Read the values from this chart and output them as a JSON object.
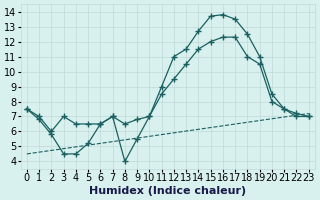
{
  "line1_x": [
    0,
    1,
    2,
    3,
    4,
    5,
    6,
    7,
    8,
    9,
    10,
    11,
    12,
    13,
    14,
    15,
    16,
    17,
    18,
    19,
    20,
    21,
    22,
    23
  ],
  "line1_y": [
    7.5,
    7.0,
    6.0,
    7.0,
    6.5,
    6.5,
    6.5,
    7.0,
    4.0,
    5.5,
    7.0,
    9.0,
    11.0,
    11.5,
    12.7,
    13.7,
    13.8,
    13.5,
    12.5,
    11.0,
    8.5,
    7.5,
    7.0,
    7.0
  ],
  "line2_x": [
    0,
    1,
    2,
    3,
    4,
    5,
    6,
    7,
    8,
    9,
    10,
    11,
    12,
    13,
    14,
    15,
    16,
    17,
    18,
    19,
    20,
    21,
    22,
    23
  ],
  "line2_y": [
    7.5,
    6.8,
    5.8,
    4.5,
    4.5,
    5.2,
    6.5,
    7.0,
    6.5,
    6.8,
    7.0,
    8.5,
    9.5,
    10.5,
    11.5,
    12.0,
    12.3,
    12.3,
    11.0,
    10.5,
    8.0,
    7.5,
    7.2,
    7.0
  ],
  "line3_x": [
    0,
    23
  ],
  "line3_y": [
    4.5,
    7.2
  ],
  "bg_color": "#d8f0ee",
  "line_color": "#1a6060",
  "grid_color": "#c0d8d8",
  "xlabel": "Humidex (Indice chaleur)",
  "ylim": [
    3.5,
    14.5
  ],
  "xlim": [
    -0.5,
    23.5
  ],
  "yticks": [
    4,
    5,
    6,
    7,
    8,
    9,
    10,
    11,
    12,
    13,
    14
  ],
  "xticks": [
    0,
    1,
    2,
    3,
    4,
    5,
    6,
    7,
    8,
    9,
    10,
    11,
    12,
    13,
    14,
    15,
    16,
    17,
    18,
    19,
    20,
    21,
    22,
    23
  ],
  "font_size": 7,
  "label_font_size": 8
}
